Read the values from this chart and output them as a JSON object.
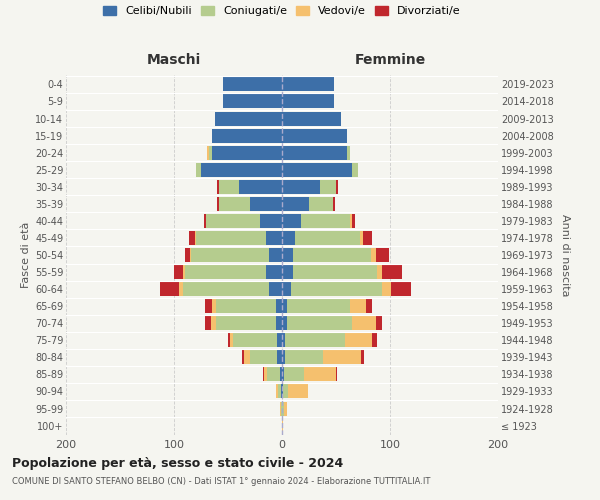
{
  "age_groups": [
    "100+",
    "95-99",
    "90-94",
    "85-89",
    "80-84",
    "75-79",
    "70-74",
    "65-69",
    "60-64",
    "55-59",
    "50-54",
    "45-49",
    "40-44",
    "35-39",
    "30-34",
    "25-29",
    "20-24",
    "15-19",
    "10-14",
    "5-9",
    "0-4"
  ],
  "birth_years": [
    "≤ 1923",
    "1924-1928",
    "1929-1933",
    "1934-1938",
    "1939-1943",
    "1944-1948",
    "1949-1953",
    "1954-1958",
    "1959-1963",
    "1964-1968",
    "1969-1973",
    "1974-1978",
    "1979-1983",
    "1984-1988",
    "1989-1993",
    "1994-1998",
    "1999-2003",
    "2004-2008",
    "2009-2013",
    "2014-2018",
    "2019-2023"
  ],
  "maschi": {
    "celibi": [
      0,
      0,
      1,
      2,
      5,
      5,
      6,
      6,
      12,
      15,
      12,
      15,
      20,
      30,
      40,
      75,
      65,
      65,
      62,
      55,
      55
    ],
    "coniugati": [
      0,
      1,
      3,
      12,
      25,
      40,
      55,
      55,
      80,
      75,
      72,
      65,
      50,
      28,
      18,
      5,
      3,
      0,
      0,
      0,
      0
    ],
    "vedovi": [
      0,
      1,
      2,
      3,
      5,
      3,
      5,
      4,
      3,
      2,
      1,
      1,
      0,
      0,
      0,
      0,
      1,
      0,
      0,
      0,
      0
    ],
    "divorziati": [
      0,
      0,
      0,
      1,
      2,
      2,
      5,
      6,
      18,
      8,
      5,
      5,
      2,
      2,
      2,
      0,
      0,
      0,
      0,
      0,
      0
    ]
  },
  "femmine": {
    "nubili": [
      0,
      0,
      1,
      2,
      3,
      3,
      5,
      5,
      8,
      10,
      10,
      12,
      18,
      25,
      35,
      65,
      60,
      60,
      55,
      48,
      48
    ],
    "coniugate": [
      0,
      2,
      5,
      18,
      35,
      55,
      60,
      58,
      85,
      78,
      72,
      60,
      45,
      22,
      15,
      5,
      3,
      0,
      0,
      0,
      0
    ],
    "vedove": [
      1,
      3,
      18,
      30,
      35,
      25,
      22,
      15,
      8,
      5,
      5,
      3,
      2,
      0,
      0,
      0,
      0,
      0,
      0,
      0,
      0
    ],
    "divorziate": [
      0,
      0,
      0,
      1,
      3,
      5,
      6,
      5,
      18,
      18,
      12,
      8,
      3,
      2,
      2,
      0,
      0,
      0,
      0,
      0,
      0
    ]
  },
  "colors": {
    "celibi_nubili": "#3d6fa8",
    "coniugati": "#b5cc8e",
    "vedovi": "#f5c06e",
    "divorziati": "#c0272d"
  },
  "xlim": 200,
  "title": "Popolazione per età, sesso e stato civile - 2024",
  "subtitle": "COMUNE DI SANTO STEFANO BELBO (CN) - Dati ISTAT 1° gennaio 2024 - Elaborazione TUTTITALIA.IT",
  "ylabel_left": "Fasce di età",
  "ylabel_right": "Anni di nascita",
  "xlabel_left": "Maschi",
  "xlabel_right": "Femmine",
  "bg_color": "#f5f5f0",
  "plot_bg": "#f5f5f0"
}
